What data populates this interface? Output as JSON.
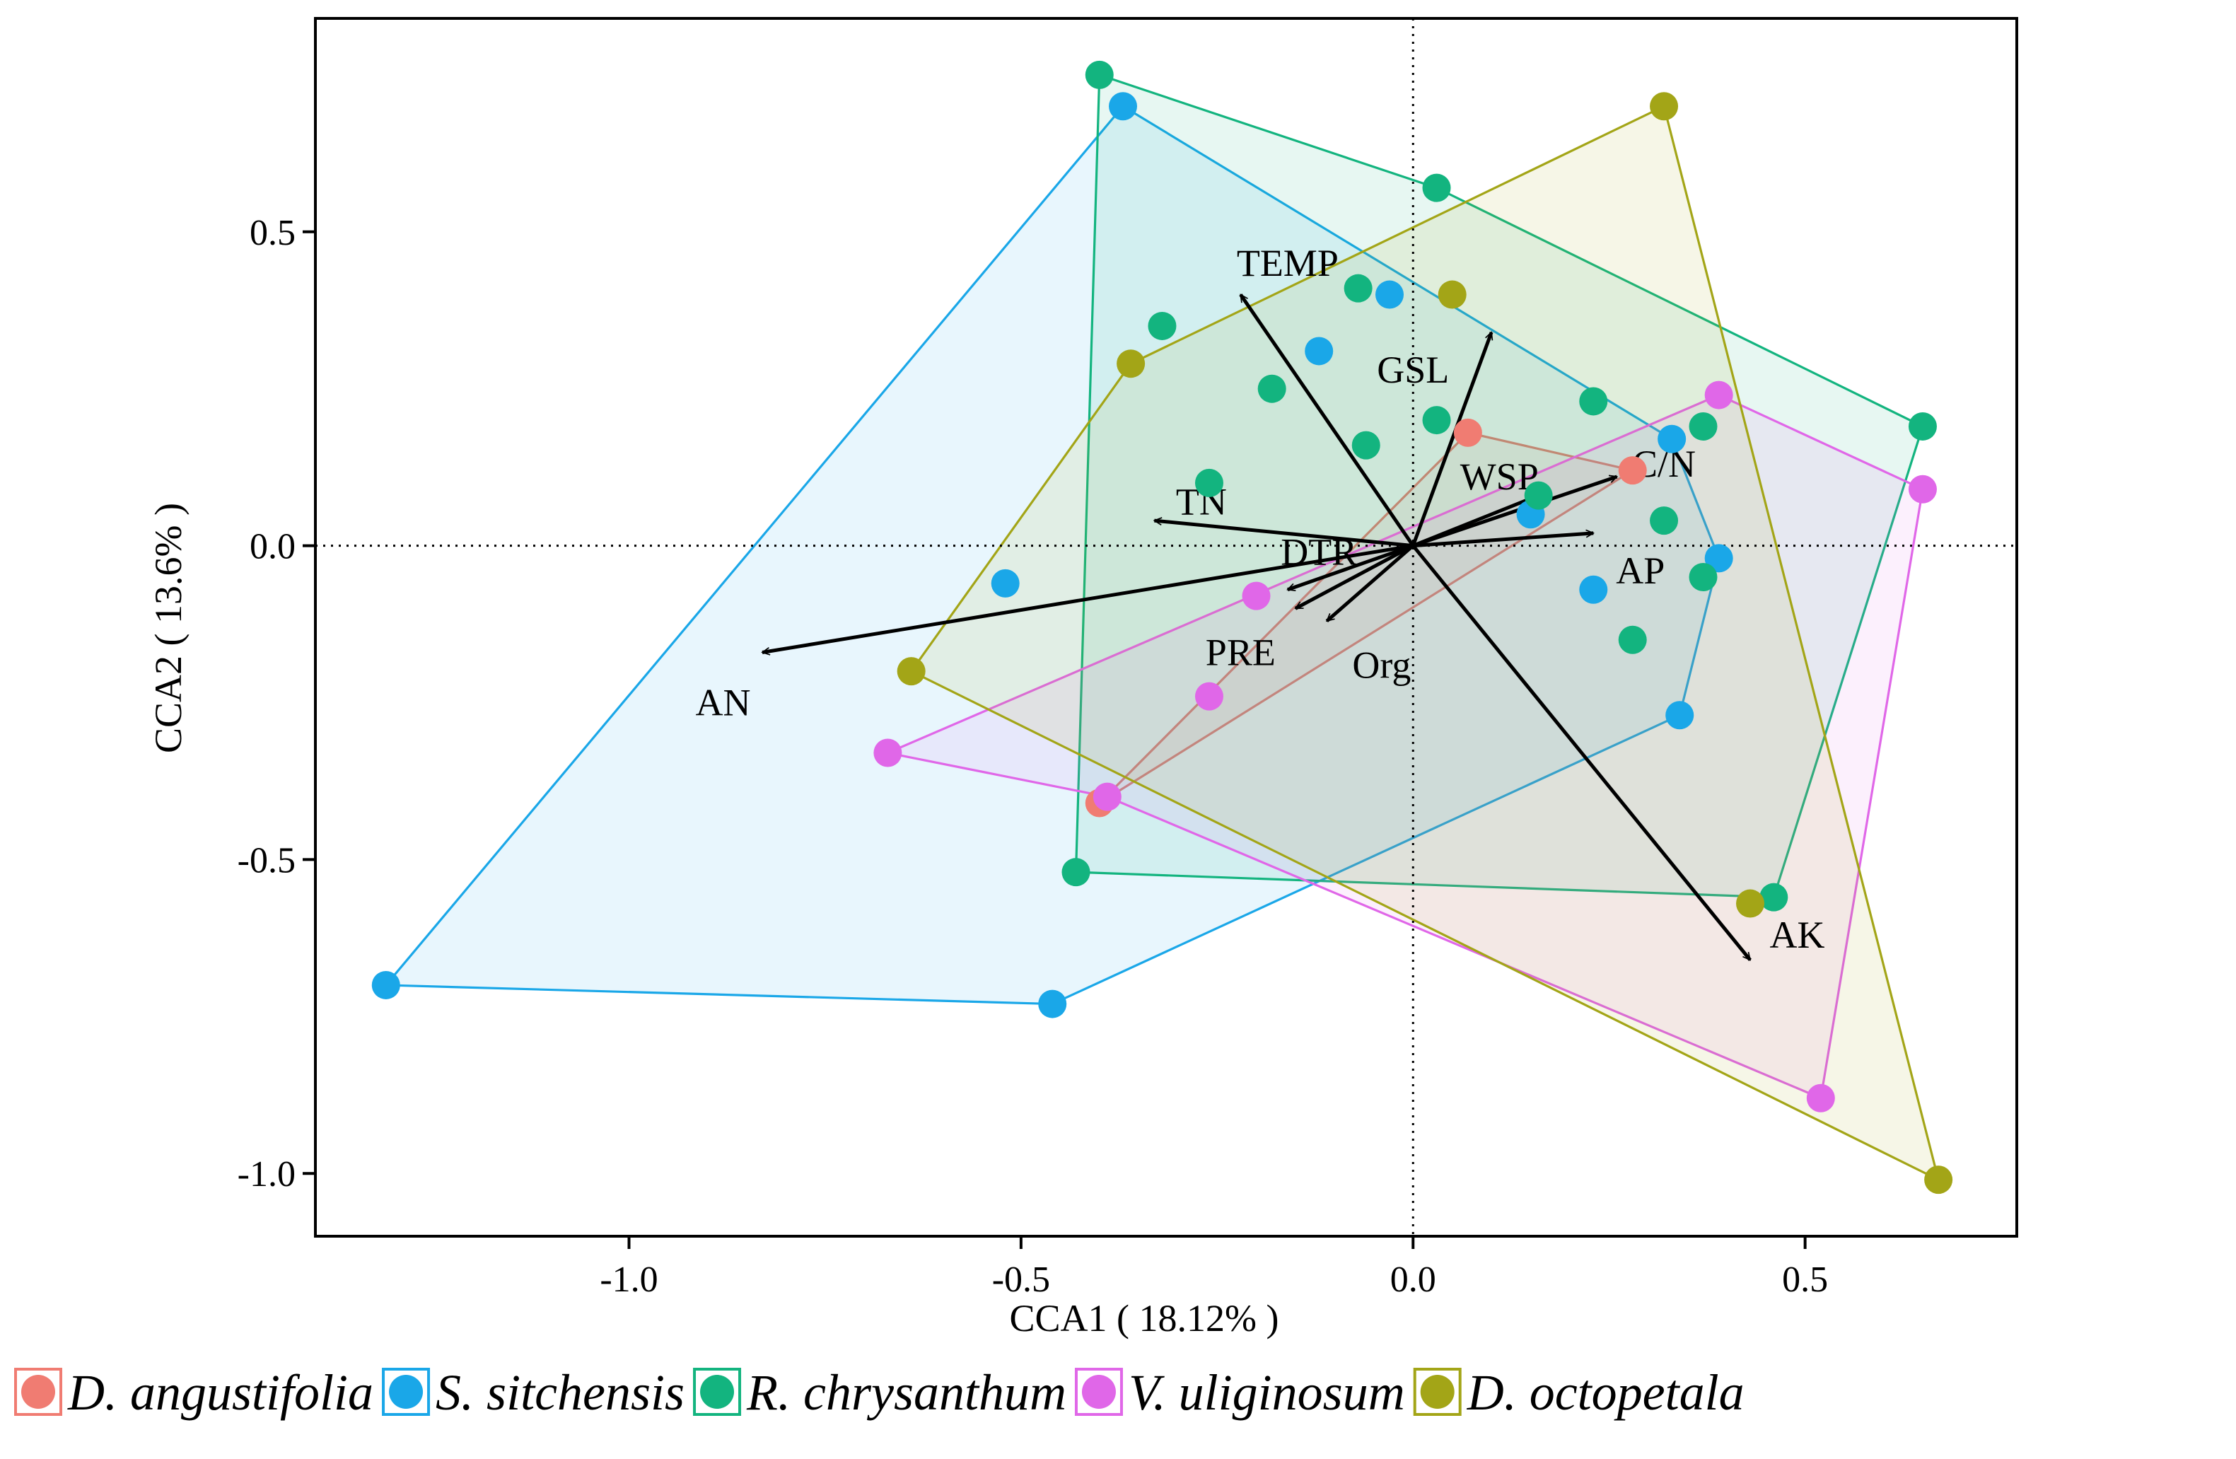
{
  "chart_data": {
    "type": "scatter",
    "subtype": "CCA biplot with convex hulls and environmental vectors",
    "xlabel": "CCA1 ( 18.12% )",
    "ylabel": "CCA2 ( 13.6% )",
    "xlim": [
      -1.4,
      0.77
    ],
    "ylim": [
      -1.1,
      0.84
    ],
    "xticks": [
      -1.0,
      -0.5,
      0.0,
      0.5
    ],
    "xtick_labels": [
      "-1.0",
      "-0.5",
      "0.0",
      "0.5"
    ],
    "yticks": [
      -1.0,
      -0.5,
      0.0,
      0.5
    ],
    "ytick_labels": [
      "-1.0",
      "-0.5",
      "0.0",
      "0.5"
    ],
    "reference_lines": {
      "x": 0,
      "y": 0,
      "style": "dotted"
    },
    "legend_position": "bottom",
    "series": [
      {
        "name": "D. angustifolia",
        "color": "#F07C72",
        "points": [
          [
            0.07,
            0.18
          ],
          [
            0.28,
            0.12
          ],
          [
            -0.4,
            -0.41
          ]
        ],
        "hull": [
          [
            0.07,
            0.18
          ],
          [
            0.28,
            0.12
          ],
          [
            -0.4,
            -0.41
          ]
        ]
      },
      {
        "name": "S. sitchensis",
        "color": "#1AA7E8",
        "points": [
          [
            -0.37,
            0.7
          ],
          [
            -0.03,
            0.4
          ],
          [
            -0.12,
            0.31
          ],
          [
            0.33,
            0.17
          ],
          [
            0.39,
            -0.02
          ],
          [
            0.15,
            0.05
          ],
          [
            0.23,
            -0.07
          ],
          [
            0.34,
            -0.27
          ],
          [
            -0.52,
            -0.06
          ],
          [
            -1.31,
            -0.7
          ],
          [
            -0.46,
            -0.73
          ]
        ],
        "hull": [
          [
            -0.37,
            0.7
          ],
          [
            0.33,
            0.17
          ],
          [
            0.39,
            -0.02
          ],
          [
            0.34,
            -0.27
          ],
          [
            -0.46,
            -0.73
          ],
          [
            -1.31,
            -0.7
          ]
        ]
      },
      {
        "name": "R. chrysanthum",
        "color": "#13B47F",
        "points": [
          [
            -0.4,
            0.75
          ],
          [
            0.03,
            0.57
          ],
          [
            -0.07,
            0.41
          ],
          [
            -0.32,
            0.35
          ],
          [
            -0.18,
            0.25
          ],
          [
            0.03,
            0.2
          ],
          [
            0.23,
            0.23
          ],
          [
            0.37,
            0.19
          ],
          [
            -0.06,
            0.16
          ],
          [
            -0.26,
            0.1
          ],
          [
            0.16,
            0.08
          ],
          [
            0.32,
            0.04
          ],
          [
            0.37,
            -0.05
          ],
          [
            0.28,
            -0.15
          ],
          [
            -0.43,
            -0.52
          ],
          [
            0.46,
            -0.56
          ],
          [
            0.65,
            0.19
          ]
        ],
        "hull": [
          [
            -0.4,
            0.75
          ],
          [
            0.03,
            0.57
          ],
          [
            0.65,
            0.19
          ],
          [
            0.46,
            -0.56
          ],
          [
            -0.43,
            -0.52
          ]
        ]
      },
      {
        "name": "V. uliginosum",
        "color": "#E067E8",
        "points": [
          [
            0.39,
            0.24
          ],
          [
            0.65,
            0.09
          ],
          [
            -0.2,
            -0.08
          ],
          [
            -0.26,
            -0.24
          ],
          [
            -0.67,
            -0.33
          ],
          [
            -0.39,
            -0.4
          ],
          [
            0.52,
            -0.88
          ]
        ],
        "hull": [
          [
            0.39,
            0.24
          ],
          [
            0.65,
            0.09
          ],
          [
            0.52,
            -0.88
          ],
          [
            -0.39,
            -0.4
          ],
          [
            -0.67,
            -0.33
          ]
        ]
      },
      {
        "name": "D. octopetala",
        "color": "#A3A517",
        "points": [
          [
            0.32,
            0.7
          ],
          [
            0.05,
            0.4
          ],
          [
            -0.36,
            0.29
          ],
          [
            -0.64,
            -0.2
          ],
          [
            0.43,
            -0.57
          ],
          [
            0.67,
            -1.01
          ]
        ],
        "hull": [
          [
            0.32,
            0.7
          ],
          [
            0.67,
            -1.01
          ],
          [
            -0.64,
            -0.2
          ],
          [
            -0.36,
            0.29
          ]
        ]
      }
    ],
    "vectors": [
      {
        "name": "TEMP",
        "end": [
          -0.22,
          0.4
        ],
        "label_at": [
          -0.16,
          0.45
        ],
        "anchor": "middle"
      },
      {
        "name": "GSL",
        "end": [
          0.1,
          0.34
        ],
        "label_at": [
          0.0,
          0.28
        ],
        "anchor": "middle"
      },
      {
        "name": "TN",
        "end": [
          -0.33,
          0.04
        ],
        "label_at": [
          -0.27,
          0.07
        ],
        "anchor": "middle"
      },
      {
        "name": "WSP",
        "end": [
          0.16,
          0.08
        ],
        "label_at": [
          0.11,
          0.11
        ],
        "anchor": "middle"
      },
      {
        "name": "C/N",
        "end": [
          0.26,
          0.11
        ],
        "label_at": [
          0.32,
          0.13
        ],
        "anchor": "middle"
      },
      {
        "name": "AP",
        "end": [
          0.23,
          0.02
        ],
        "label_at": [
          0.29,
          -0.04
        ],
        "anchor": "middle"
      },
      {
        "name": "DTR",
        "end": [
          -0.16,
          -0.07
        ],
        "label_at": [
          -0.12,
          -0.01
        ],
        "anchor": "middle"
      },
      {
        "name": "PRE",
        "end": [
          -0.15,
          -0.1
        ],
        "label_at": [
          -0.22,
          -0.17
        ],
        "anchor": "middle"
      },
      {
        "name": "Org",
        "end": [
          -0.11,
          -0.12
        ],
        "label_at": [
          -0.04,
          -0.19
        ],
        "anchor": "middle"
      },
      {
        "name": "AN",
        "end": [
          -0.83,
          -0.17
        ],
        "label_at": [
          -0.88,
          -0.25
        ],
        "anchor": "middle"
      },
      {
        "name": "AK",
        "end": [
          0.43,
          -0.66
        ],
        "label_at": [
          0.49,
          -0.62
        ],
        "anchor": "middle"
      }
    ]
  }
}
